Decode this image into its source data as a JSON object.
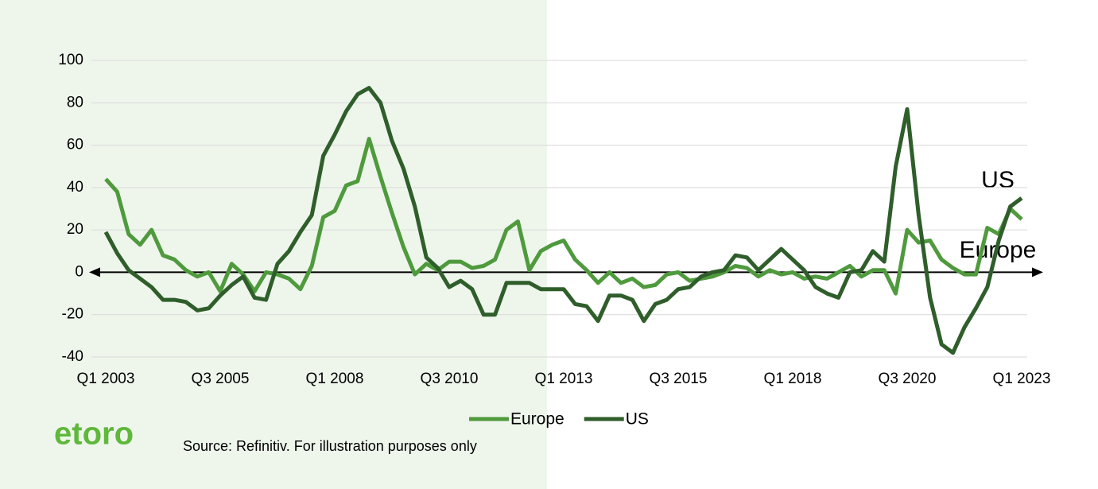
{
  "chart_data": {
    "type": "line",
    "categories": [
      "Q1 2003",
      null,
      null,
      null,
      null,
      null,
      null,
      null,
      null,
      null,
      "Q3 2005",
      null,
      null,
      null,
      null,
      null,
      null,
      null,
      null,
      null,
      "Q1 2008",
      null,
      null,
      null,
      null,
      null,
      null,
      null,
      null,
      null,
      "Q3 2010",
      null,
      null,
      null,
      null,
      null,
      null,
      null,
      null,
      null,
      "Q1 2013",
      null,
      null,
      null,
      null,
      null,
      null,
      null,
      null,
      null,
      "Q3 2015",
      null,
      null,
      null,
      null,
      null,
      null,
      null,
      null,
      null,
      "Q1 2018",
      null,
      null,
      null,
      null,
      null,
      null,
      null,
      null,
      null,
      "Q3 2020",
      null,
      null,
      null,
      null,
      null,
      null,
      null,
      null,
      null,
      "Q1 2023"
    ],
    "series": [
      {
        "name": "Europe",
        "color": "#4f9a3d",
        "values": [
          44,
          38,
          18,
          13,
          20,
          8,
          6,
          1,
          -2,
          0,
          -9,
          4,
          -1,
          -9,
          0,
          -1,
          -3,
          -8,
          3,
          26,
          29,
          41,
          43,
          63,
          45,
          28,
          12,
          -1,
          4,
          1,
          5,
          5,
          2,
          3,
          6,
          20,
          24,
          1,
          10,
          13,
          15,
          6,
          1,
          -5,
          0,
          -5,
          -3,
          -7,
          -6,
          -1,
          0,
          -4,
          -3,
          -2,
          0,
          3,
          2,
          -2,
          1,
          -1,
          0,
          -3,
          -2,
          -3,
          0,
          3,
          -2,
          1,
          1,
          -10,
          20,
          14,
          15,
          6,
          2,
          -1,
          -1,
          21,
          18,
          30,
          25
        ]
      },
      {
        "name": "US",
        "color": "#2f5e2b",
        "values": [
          19,
          9,
          1,
          -3,
          -7,
          -13,
          -13,
          -14,
          -18,
          -17,
          -11,
          -6,
          -2,
          -12,
          -13,
          4,
          10,
          19,
          27,
          55,
          65,
          76,
          84,
          87,
          80,
          62,
          49,
          31,
          7,
          2,
          -7,
          -4,
          -8,
          -20,
          -20,
          -5,
          -5,
          -5,
          -8,
          -8,
          -8,
          -15,
          -16,
          -23,
          -11,
          -11,
          -13,
          -23,
          -15,
          -13,
          -8,
          -7,
          -2,
          0,
          1,
          8,
          7,
          1,
          6,
          11,
          6,
          1,
          -7,
          -10,
          -12,
          0,
          1,
          10,
          5,
          50,
          77,
          27,
          -12,
          -34,
          -38,
          -26,
          -17,
          -7,
          15,
          31,
          35
        ]
      }
    ],
    "ylim": [
      -40,
      100
    ],
    "yticks": [
      -40,
      -20,
      0,
      20,
      40,
      60,
      80,
      100
    ],
    "grid": true,
    "annotations": [
      "US",
      "Europe"
    ],
    "source": "Source: Refinitiv. For illustration purposes only",
    "logo": "etoro"
  }
}
